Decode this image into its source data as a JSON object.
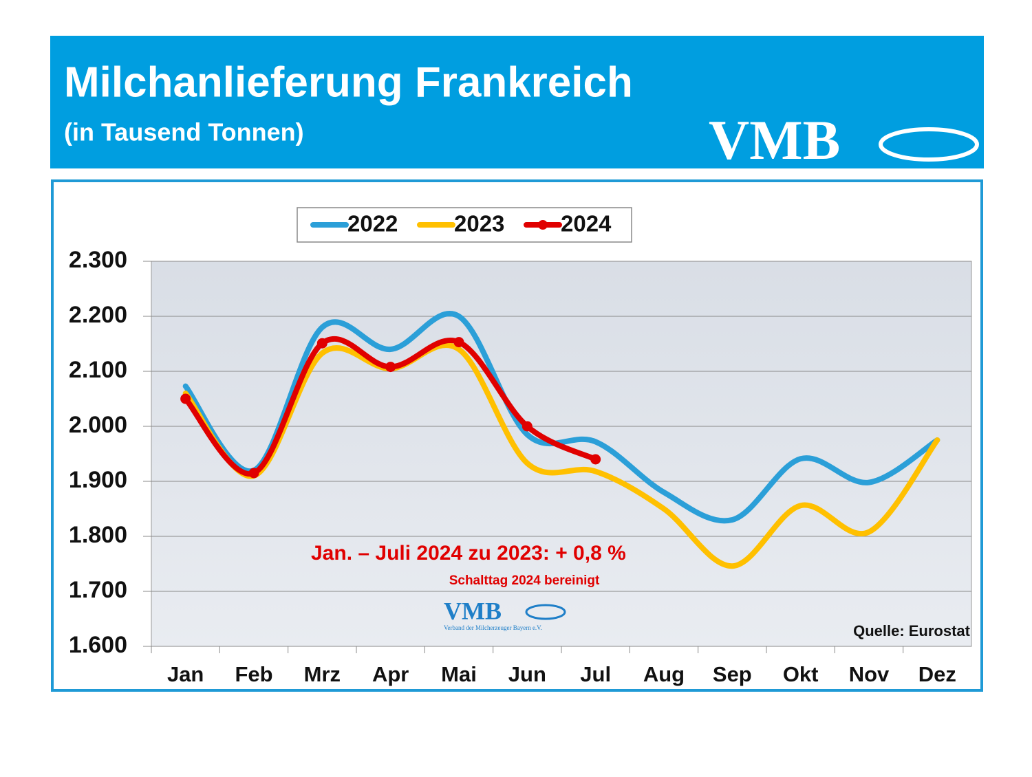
{
  "chart_data": {
    "type": "line",
    "title": "Milchanlieferung Frankreich",
    "subtitle": "(in Tausend Tonnen)",
    "logo": "VMB",
    "logo_subtitle": "Verband der Milcherzeuger Bayern e.V.",
    "annotation": "Jan. – Juli 2024 zu 2023:  + 0,8 %",
    "annotation_note": "Schalttag 2024 bereinigt",
    "source": "Quelle: Eurostat",
    "categories": [
      "Jan",
      "Feb",
      "Mrz",
      "Apr",
      "Mai",
      "Jun",
      "Jul",
      "Aug",
      "Sep",
      "Okt",
      "Nov",
      "Dez"
    ],
    "series": [
      {
        "name": "2022",
        "color": "#2b9fd8",
        "values": [
          2073,
          1920,
          2180,
          2140,
          2200,
          1985,
          1972,
          1880,
          1830,
          1941,
          1898,
          1975
        ]
      },
      {
        "name": "2023",
        "color": "#ffc000",
        "values": [
          2060,
          1910,
          2133,
          2105,
          2140,
          1933,
          1918,
          1850,
          1746,
          1856,
          1808,
          1975
        ]
      },
      {
        "name": "2024",
        "color": "#e00000",
        "marker": true,
        "values": [
          2050,
          1915,
          2151,
          2108,
          2153,
          2000,
          1940,
          null,
          null,
          null,
          null,
          null
        ]
      }
    ],
    "ylim": [
      1600,
      2300
    ],
    "yticks": [
      {
        "value": 1600,
        "label": "1.600"
      },
      {
        "value": 1700,
        "label": "1.700"
      },
      {
        "value": 1800,
        "label": "1.800"
      },
      {
        "value": 1900,
        "label": "1.900"
      },
      {
        "value": 2000,
        "label": "2.000"
      },
      {
        "value": 2100,
        "label": "2.100"
      },
      {
        "value": 2200,
        "label": "2.200"
      },
      {
        "value": 2300,
        "label": "2.300"
      }
    ],
    "grid": true,
    "legend": "top"
  }
}
